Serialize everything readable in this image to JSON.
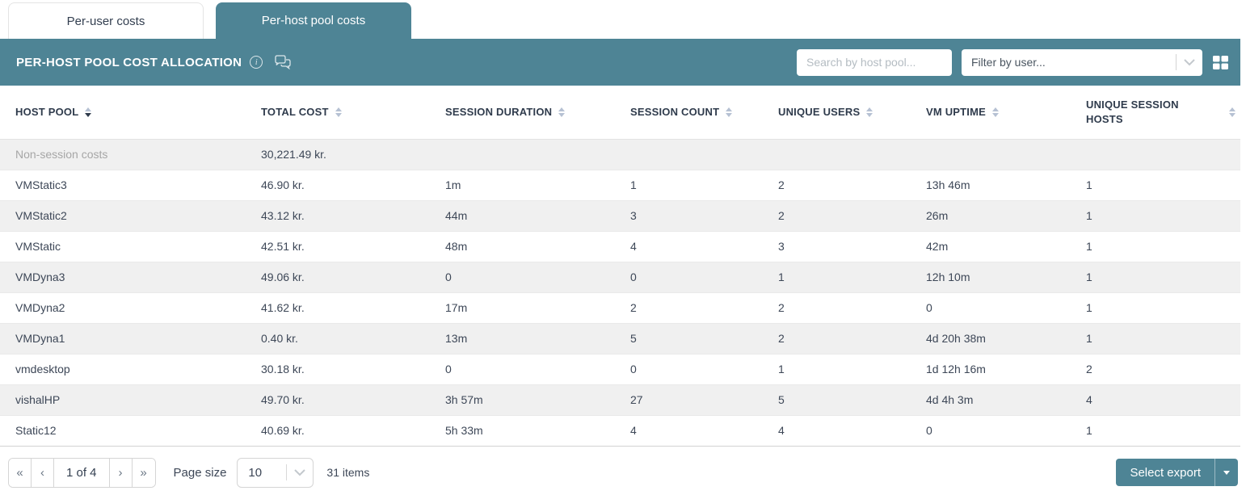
{
  "tabs": [
    {
      "label": "Per-user costs",
      "active": false
    },
    {
      "label": "Per-host pool costs",
      "active": true
    }
  ],
  "toolbar": {
    "title": "PER-HOST POOL COST ALLOCATION",
    "info_icon": "info-icon",
    "chat_icon": "comments-icon",
    "search_placeholder": "Search by host pool...",
    "filter_placeholder": "Filter by user...",
    "grid_icon": "table-view-icon"
  },
  "table": {
    "columns": [
      {
        "label": "HOST POOL",
        "key": "host_pool",
        "sort": "desc",
        "wrap": false
      },
      {
        "label": "TOTAL COST",
        "key": "total_cost",
        "sort": null,
        "wrap": false
      },
      {
        "label": "SESSION DURATION",
        "key": "session_duration",
        "sort": null,
        "wrap": false
      },
      {
        "label": "SESSION COUNT",
        "key": "session_count",
        "sort": null,
        "wrap": false
      },
      {
        "label": "UNIQUE USERS",
        "key": "unique_users",
        "sort": null,
        "wrap": false
      },
      {
        "label": "VM UPTIME",
        "key": "vm_uptime",
        "sort": null,
        "wrap": false
      },
      {
        "label": "UNIQUE SESSION HOSTS",
        "key": "unique_session_hosts",
        "sort": null,
        "wrap": true
      }
    ],
    "rows": [
      {
        "host_pool": "Non-session costs",
        "total_cost": "30,221.49 kr.",
        "session_duration": "",
        "session_count": "",
        "unique_users": "",
        "vm_uptime": "",
        "unique_session_hosts": "",
        "muted": true
      },
      {
        "host_pool": "VMStatic3",
        "total_cost": "46.90 kr.",
        "session_duration": "1m",
        "session_count": "1",
        "unique_users": "2",
        "vm_uptime": "13h 46m",
        "unique_session_hosts": "1",
        "muted": false
      },
      {
        "host_pool": "VMStatic2",
        "total_cost": "43.12 kr.",
        "session_duration": "44m",
        "session_count": "3",
        "unique_users": "2",
        "vm_uptime": "26m",
        "unique_session_hosts": "1",
        "muted": false
      },
      {
        "host_pool": "VMStatic",
        "total_cost": "42.51 kr.",
        "session_duration": "48m",
        "session_count": "4",
        "unique_users": "3",
        "vm_uptime": "42m",
        "unique_session_hosts": "1",
        "muted": false
      },
      {
        "host_pool": "VMDyna3",
        "total_cost": "49.06 kr.",
        "session_duration": "0",
        "session_count": "0",
        "unique_users": "1",
        "vm_uptime": "12h 10m",
        "unique_session_hosts": "1",
        "muted": false
      },
      {
        "host_pool": "VMDyna2",
        "total_cost": "41.62 kr.",
        "session_duration": "17m",
        "session_count": "2",
        "unique_users": "2",
        "vm_uptime": "0",
        "unique_session_hosts": "1",
        "muted": false
      },
      {
        "host_pool": "VMDyna1",
        "total_cost": "0.40 kr.",
        "session_duration": "13m",
        "session_count": "5",
        "unique_users": "2",
        "vm_uptime": "4d 20h 38m",
        "unique_session_hosts": "1",
        "muted": false
      },
      {
        "host_pool": "vmdesktop",
        "total_cost": "30.18 kr.",
        "session_duration": "0",
        "session_count": "0",
        "unique_users": "1",
        "vm_uptime": "1d 12h 16m",
        "unique_session_hosts": "2",
        "muted": false
      },
      {
        "host_pool": "vishalHP",
        "total_cost": "49.70 kr.",
        "session_duration": "3h 57m",
        "session_count": "27",
        "unique_users": "5",
        "vm_uptime": "4d 4h 3m",
        "unique_session_hosts": "4",
        "muted": false
      },
      {
        "host_pool": "Static12",
        "total_cost": "40.69 kr.",
        "session_duration": "5h 33m",
        "session_count": "4",
        "unique_users": "4",
        "vm_uptime": "0",
        "unique_session_hosts": "1",
        "muted": false
      }
    ]
  },
  "footer": {
    "pagination": {
      "first": "«",
      "prev": "‹",
      "label": "1 of 4",
      "next": "›",
      "last": "»"
    },
    "page_size_label": "Page size",
    "page_size_value": "10",
    "items_label": "31 items",
    "export_label": "Select export"
  },
  "colors": {
    "accent": "#4e8495",
    "stripe": "#f0f0f0",
    "header_text": "#2f3b4c"
  }
}
